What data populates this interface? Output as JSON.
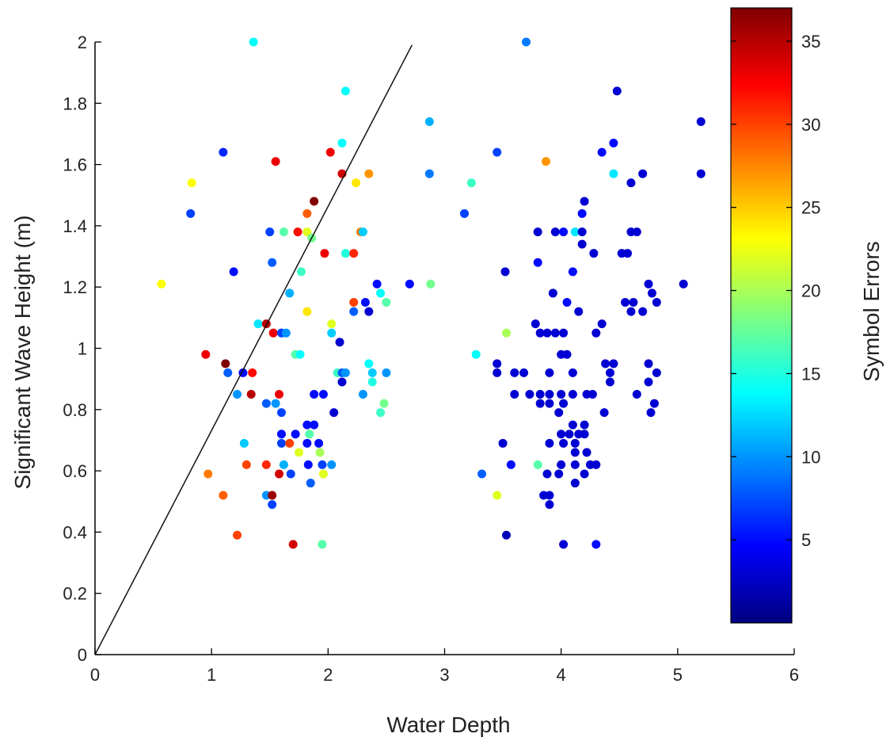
{
  "chart_data": {
    "type": "scatter",
    "xlabel": "Water Depth",
    "ylabel": "Significant Wave Height (m)",
    "xlim": [
      0,
      6
    ],
    "ylim": [
      0,
      2
    ],
    "x_ticks": [
      "0",
      "1",
      "2",
      "3",
      "4",
      "5",
      "6"
    ],
    "y_ticks": [
      "0",
      "0.2",
      "0.4",
      "0.6",
      "0.8",
      "1",
      "1.2",
      "1.4",
      "1.6",
      "1.8",
      "2"
    ],
    "grid": false,
    "colormap": "jet",
    "colorbar": {
      "label": "Symbol Errors",
      "range": [
        0,
        37
      ],
      "ticks": [
        "5",
        "10",
        "15",
        "20",
        "25",
        "30",
        "35"
      ],
      "tick_values": [
        5,
        10,
        15,
        20,
        25,
        30,
        35
      ],
      "placement": "right"
    },
    "reference_line": {
      "from": [
        0,
        0
      ],
      "to": [
        2.72,
        1.99
      ]
    },
    "points": [
      [
        1.36,
        2.0,
        14
      ],
      [
        3.7,
        2.0,
        9
      ],
      [
        2.15,
        1.84,
        14
      ],
      [
        4.48,
        1.84,
        3
      ],
      [
        2.87,
        1.74,
        11
      ],
      [
        5.2,
        1.74,
        3
      ],
      [
        1.1,
        1.64,
        6
      ],
      [
        2.02,
        1.64,
        33
      ],
      [
        2.12,
        1.67,
        14
      ],
      [
        3.45,
        1.64,
        7
      ],
      [
        4.35,
        1.64,
        5
      ],
      [
        4.45,
        1.67,
        5
      ],
      [
        0.83,
        1.54,
        23
      ],
      [
        1.55,
        1.61,
        33
      ],
      [
        2.12,
        1.57,
        34
      ],
      [
        2.24,
        1.54,
        24
      ],
      [
        2.35,
        1.57,
        27
      ],
      [
        2.87,
        1.57,
        9
      ],
      [
        3.23,
        1.54,
        16
      ],
      [
        3.87,
        1.61,
        27
      ],
      [
        4.45,
        1.57,
        13
      ],
      [
        4.6,
        1.54,
        3
      ],
      [
        4.7,
        1.57,
        3
      ],
      [
        5.2,
        1.57,
        3
      ],
      [
        0.82,
        1.44,
        7
      ],
      [
        1.88,
        1.48,
        37
      ],
      [
        1.82,
        1.44,
        29
      ],
      [
        3.17,
        1.44,
        7
      ],
      [
        4.2,
        1.48,
        3
      ],
      [
        4.18,
        1.44,
        5
      ],
      [
        1.5,
        1.38,
        7
      ],
      [
        1.62,
        1.38,
        17
      ],
      [
        1.74,
        1.38,
        32
      ],
      [
        1.82,
        1.38,
        22
      ],
      [
        1.86,
        1.36,
        18
      ],
      [
        2.28,
        1.38,
        28
      ],
      [
        2.3,
        1.38,
        12
      ],
      [
        3.8,
        1.38,
        3
      ],
      [
        3.95,
        1.38,
        3
      ],
      [
        4.02,
        1.38,
        5
      ],
      [
        4.12,
        1.38,
        13
      ],
      [
        4.18,
        1.38,
        3
      ],
      [
        4.6,
        1.38,
        3
      ],
      [
        4.65,
        1.38,
        3
      ],
      [
        1.52,
        1.28,
        8
      ],
      [
        1.97,
        1.31,
        33
      ],
      [
        2.15,
        1.31,
        15
      ],
      [
        2.22,
        1.31,
        31
      ],
      [
        3.8,
        1.28,
        5
      ],
      [
        4.18,
        1.34,
        3
      ],
      [
        4.28,
        1.31,
        3
      ],
      [
        4.52,
        1.31,
        3
      ],
      [
        4.57,
        1.31,
        3
      ],
      [
        0.57,
        1.21,
        23
      ],
      [
        1.19,
        1.25,
        5
      ],
      [
        1.77,
        1.25,
        16
      ],
      [
        2.42,
        1.21,
        5
      ],
      [
        2.7,
        1.21,
        5
      ],
      [
        2.88,
        1.21,
        18
      ],
      [
        3.52,
        1.25,
        3
      ],
      [
        4.1,
        1.25,
        5
      ],
      [
        4.75,
        1.21,
        3
      ],
      [
        5.05,
        1.21,
        3
      ],
      [
        1.67,
        1.18,
        11
      ],
      [
        1.82,
        1.12,
        24
      ],
      [
        2.22,
        1.15,
        30
      ],
      [
        2.32,
        1.15,
        5
      ],
      [
        2.45,
        1.18,
        14
      ],
      [
        2.5,
        1.15,
        17
      ],
      [
        2.22,
        1.12,
        8
      ],
      [
        2.35,
        1.12,
        3
      ],
      [
        3.93,
        1.18,
        3
      ],
      [
        4.05,
        1.15,
        5
      ],
      [
        4.15,
        1.12,
        3
      ],
      [
        4.55,
        1.15,
        3
      ],
      [
        4.62,
        1.15,
        3
      ],
      [
        4.7,
        1.12,
        3
      ],
      [
        4.78,
        1.18,
        3
      ],
      [
        4.6,
        1.12,
        3
      ],
      [
        4.82,
        1.15,
        3
      ],
      [
        1.4,
        1.08,
        13
      ],
      [
        1.47,
        1.08,
        35
      ],
      [
        1.53,
        1.05,
        33
      ],
      [
        1.6,
        1.05,
        7
      ],
      [
        1.64,
        1.05,
        10
      ],
      [
        2.03,
        1.08,
        22
      ],
      [
        2.03,
        1.05,
        12
      ],
      [
        3.53,
        1.05,
        20
      ],
      [
        3.78,
        1.08,
        3
      ],
      [
        3.82,
        1.05,
        3
      ],
      [
        3.88,
        1.05,
        3
      ],
      [
        3.95,
        1.05,
        3
      ],
      [
        4.02,
        1.05,
        3
      ],
      [
        4.35,
        1.08,
        3
      ],
      [
        4.3,
        1.05,
        3
      ],
      [
        0.95,
        0.98,
        33
      ],
      [
        1.12,
        0.95,
        37
      ],
      [
        1.72,
        0.98,
        17
      ],
      [
        1.76,
        0.98,
        14
      ],
      [
        2.1,
        1.02,
        3
      ],
      [
        3.27,
        0.98,
        14
      ],
      [
        4.0,
        0.98,
        3
      ],
      [
        4.05,
        0.98,
        3
      ],
      [
        4.38,
        0.95,
        3
      ],
      [
        1.14,
        0.92,
        8
      ],
      [
        1.27,
        0.92,
        5
      ],
      [
        1.35,
        0.92,
        32
      ],
      [
        2.08,
        0.92,
        16
      ],
      [
        2.12,
        0.92,
        8
      ],
      [
        2.15,
        0.92,
        10
      ],
      [
        2.35,
        0.95,
        14
      ],
      [
        2.38,
        0.92,
        12
      ],
      [
        2.5,
        0.92,
        10
      ],
      [
        3.45,
        0.95,
        3
      ],
      [
        3.6,
        0.92,
        3
      ],
      [
        3.68,
        0.92,
        3
      ],
      [
        3.45,
        0.92,
        3
      ],
      [
        3.9,
        0.92,
        3
      ],
      [
        4.1,
        0.92,
        3
      ],
      [
        4.42,
        0.92,
        3
      ],
      [
        4.45,
        0.95,
        3
      ],
      [
        4.75,
        0.95,
        3
      ],
      [
        4.82,
        0.92,
        3
      ],
      [
        2.12,
        0.89,
        3
      ],
      [
        2.38,
        0.89,
        15
      ],
      [
        4.42,
        0.89,
        3
      ],
      [
        4.75,
        0.89,
        3
      ],
      [
        1.22,
        0.85,
        10
      ],
      [
        1.34,
        0.85,
        35
      ],
      [
        1.58,
        0.85,
        33
      ],
      [
        1.88,
        0.85,
        5
      ],
      [
        1.96,
        0.85,
        5
      ],
      [
        2.3,
        0.85,
        10
      ],
      [
        3.6,
        0.85,
        3
      ],
      [
        3.73,
        0.85,
        3
      ],
      [
        3.82,
        0.85,
        3
      ],
      [
        3.9,
        0.85,
        3
      ],
      [
        4.0,
        0.85,
        3
      ],
      [
        4.1,
        0.85,
        3
      ],
      [
        4.22,
        0.85,
        3
      ],
      [
        4.27,
        0.85,
        3
      ],
      [
        4.65,
        0.85,
        3
      ],
      [
        1.47,
        0.82,
        8
      ],
      [
        1.55,
        0.82,
        10
      ],
      [
        2.48,
        0.82,
        18
      ],
      [
        3.82,
        0.82,
        3
      ],
      [
        3.9,
        0.82,
        3
      ],
      [
        4.02,
        0.82,
        3
      ],
      [
        4.8,
        0.82,
        3
      ],
      [
        1.6,
        0.79,
        7
      ],
      [
        2.05,
        0.79,
        3
      ],
      [
        2.45,
        0.79,
        16
      ],
      [
        3.98,
        0.79,
        3
      ],
      [
        4.37,
        0.79,
        3
      ],
      [
        4.77,
        0.79,
        3
      ],
      [
        1.82,
        0.75,
        5
      ],
      [
        1.88,
        0.75,
        5
      ],
      [
        4.1,
        0.75,
        3
      ],
      [
        4.2,
        0.75,
        3
      ],
      [
        1.6,
        0.72,
        5
      ],
      [
        1.72,
        0.72,
        5
      ],
      [
        1.84,
        0.72,
        17
      ],
      [
        4.0,
        0.72,
        3
      ],
      [
        4.15,
        0.72,
        3
      ],
      [
        4.2,
        0.72,
        3
      ],
      [
        4.07,
        0.72,
        3
      ],
      [
        1.28,
        0.69,
        12
      ],
      [
        1.6,
        0.69,
        7
      ],
      [
        1.67,
        0.69,
        30
      ],
      [
        1.82,
        0.69,
        5
      ],
      [
        1.92,
        0.69,
        5
      ],
      [
        3.5,
        0.69,
        3
      ],
      [
        3.9,
        0.69,
        3
      ],
      [
        4.02,
        0.69,
        3
      ],
      [
        4.12,
        0.69,
        3
      ],
      [
        1.75,
        0.66,
        22
      ],
      [
        1.93,
        0.66,
        20
      ],
      [
        4.12,
        0.66,
        3
      ],
      [
        4.22,
        0.66,
        3
      ],
      [
        1.3,
        0.62,
        30
      ],
      [
        1.47,
        0.62,
        31
      ],
      [
        1.62,
        0.62,
        11
      ],
      [
        1.83,
        0.62,
        5
      ],
      [
        1.95,
        0.62,
        7
      ],
      [
        2.03,
        0.62,
        10
      ],
      [
        3.57,
        0.62,
        5
      ],
      [
        3.8,
        0.62,
        17
      ],
      [
        4.0,
        0.62,
        3
      ],
      [
        4.12,
        0.62,
        3
      ],
      [
        4.25,
        0.62,
        3
      ],
      [
        4.3,
        0.62,
        3
      ],
      [
        0.97,
        0.59,
        28
      ],
      [
        1.58,
        0.59,
        34
      ],
      [
        1.68,
        0.59,
        7
      ],
      [
        1.96,
        0.59,
        22
      ],
      [
        3.32,
        0.59,
        8
      ],
      [
        3.88,
        0.59,
        3
      ],
      [
        3.98,
        0.59,
        3
      ],
      [
        4.2,
        0.59,
        3
      ],
      [
        1.85,
        0.56,
        8
      ],
      [
        4.12,
        0.56,
        3
      ],
      [
        1.1,
        0.52,
        29
      ],
      [
        1.47,
        0.52,
        10
      ],
      [
        1.52,
        0.52,
        36
      ],
      [
        3.45,
        0.52,
        22
      ],
      [
        3.85,
        0.52,
        3
      ],
      [
        3.9,
        0.52,
        3
      ],
      [
        1.52,
        0.49,
        7
      ],
      [
        3.9,
        0.49,
        3
      ],
      [
        3.53,
        0.39,
        2
      ],
      [
        1.22,
        0.39,
        30
      ],
      [
        1.7,
        0.36,
        34
      ],
      [
        1.95,
        0.36,
        17
      ],
      [
        4.02,
        0.36,
        3
      ],
      [
        4.3,
        0.36,
        5
      ]
    ]
  }
}
